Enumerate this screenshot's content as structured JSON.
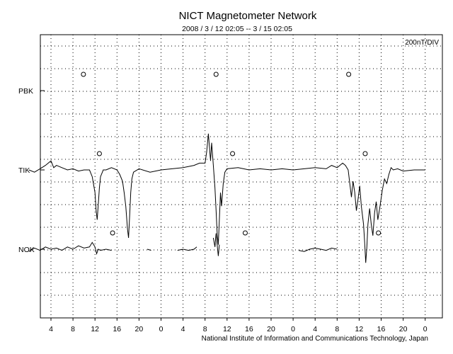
{
  "chart_data": {
    "type": "line",
    "title": "NICT Magnetometer Network",
    "subtitle": "2008 / 3 / 12  02:05 --  3 / 15  02:05",
    "scale_label": "200nT/DIV",
    "footer": "National Institute of Information and Communications Technology, Japan",
    "x_ticks": [
      "4",
      "8",
      "12",
      "16",
      "20",
      "0",
      "4",
      "8",
      "12",
      "16",
      "20",
      "0",
      "4",
      "8",
      "12",
      "16",
      "20",
      "0"
    ],
    "xlim_hours": [
      0,
      72
    ],
    "grid": true,
    "stations": [
      {
        "name": "PBK",
        "midnight_markers_hours": [
          9.9,
          34.0,
          58.1
        ],
        "values": []
      },
      {
        "name": "TIK",
        "midnight_markers_hours": [
          12.8,
          37.0,
          61.1
        ],
        "values": [
          [
            0,
            0
          ],
          [
            1,
            -0.1
          ],
          [
            2,
            0.05
          ],
          [
            3,
            0.2
          ],
          [
            4,
            0.4
          ],
          [
            4.5,
            0.1
          ],
          [
            5,
            0.2
          ],
          [
            6,
            0.1
          ],
          [
            7,
            0
          ],
          [
            8,
            0.05
          ],
          [
            9,
            -0.05
          ],
          [
            10,
            0
          ],
          [
            11,
            0
          ],
          [
            11.5,
            -0.3
          ],
          [
            12,
            -1.0
          ],
          [
            12.2,
            -1.8
          ],
          [
            12.4,
            -2.2
          ],
          [
            12.6,
            -1.5
          ],
          [
            12.8,
            -0.8
          ],
          [
            13,
            -0.3
          ],
          [
            13.5,
            0
          ],
          [
            14,
            0
          ],
          [
            15,
            0.1
          ],
          [
            16,
            0
          ],
          [
            16.5,
            -0.2
          ],
          [
            17,
            -0.5
          ],
          [
            17.3,
            -1.0
          ],
          [
            17.6,
            -1.6
          ],
          [
            17.9,
            -2.6
          ],
          [
            18.1,
            -3.0
          ],
          [
            18.3,
            -2.0
          ],
          [
            18.5,
            -1.0
          ],
          [
            18.7,
            -0.4
          ],
          [
            19,
            -0.1
          ],
          [
            20,
            0.05
          ],
          [
            22,
            -0.1
          ],
          [
            24,
            0
          ],
          [
            26,
            0.05
          ],
          [
            28,
            0.1
          ],
          [
            30,
            0.2
          ],
          [
            31,
            0.3
          ],
          [
            32,
            0.3
          ],
          [
            32.3,
            0.8
          ],
          [
            32.6,
            1.6
          ],
          [
            32.8,
            1.0
          ],
          [
            33,
            0.4
          ],
          [
            33.2,
            1.2
          ],
          [
            33.5,
            0.2
          ],
          [
            33.8,
            -0.8
          ],
          [
            34.0,
            -1.8
          ],
          [
            34.2,
            -2.8
          ],
          [
            34.4,
            -3.3
          ],
          [
            34.6,
            -2.2
          ],
          [
            34.8,
            -1.0
          ],
          [
            35,
            -1.6
          ],
          [
            35.3,
            -0.6
          ],
          [
            35.6,
            -0.1
          ],
          [
            36,
            0.05
          ],
          [
            38,
            0.1
          ],
          [
            40,
            0
          ],
          [
            42,
            0.05
          ],
          [
            44,
            0
          ],
          [
            46,
            0.05
          ],
          [
            48,
            0
          ],
          [
            50,
            0.05
          ],
          [
            52,
            0.1
          ],
          [
            54,
            0.05
          ],
          [
            55,
            0.2
          ],
          [
            56,
            0.1
          ],
          [
            57,
            0.3
          ],
          [
            57.5,
            0.2
          ],
          [
            58,
            0
          ],
          [
            58.3,
            -0.6
          ],
          [
            58.6,
            -1.2
          ],
          [
            58.9,
            -0.5
          ],
          [
            59.2,
            -1.0
          ],
          [
            59.5,
            -1.8
          ],
          [
            59.8,
            -1.3
          ],
          [
            60.1,
            -0.7
          ],
          [
            60.4,
            -1.6
          ],
          [
            60.8,
            -2.4
          ],
          [
            61.0,
            -3.2
          ],
          [
            61.2,
            -4.1
          ],
          [
            61.4,
            -3.4
          ],
          [
            61.6,
            -2.4
          ],
          [
            61.9,
            -1.7
          ],
          [
            62.2,
            -2.4
          ],
          [
            62.5,
            -2.9
          ],
          [
            62.8,
            -1.9
          ],
          [
            63.1,
            -1.4
          ],
          [
            63.4,
            -2.2
          ],
          [
            63.8,
            -1.6
          ],
          [
            64.2,
            -0.9
          ],
          [
            64.6,
            -0.4
          ],
          [
            65.0,
            -0.6
          ],
          [
            65.4,
            -0.2
          ],
          [
            65.8,
            0.1
          ],
          [
            66.2,
            0
          ],
          [
            67,
            0.05
          ],
          [
            68,
            -0.05
          ],
          [
            70,
            0
          ],
          [
            72,
            0
          ]
        ]
      },
      {
        "name": "NOK",
        "midnight_markers_hours": [
          15.2,
          39.3,
          63.5
        ],
        "values": [
          [
            0,
            -0.1
          ],
          [
            1,
            0.05
          ],
          [
            2,
            -0.05
          ],
          [
            3,
            0.1
          ],
          [
            4,
            0
          ],
          [
            5,
            0.05
          ],
          [
            6,
            -0.05
          ],
          [
            7,
            0.1
          ],
          [
            8,
            0
          ],
          [
            9,
            0.15
          ],
          [
            10,
            0.05
          ],
          [
            11,
            0.1
          ],
          [
            11.5,
            0.3
          ],
          [
            12,
            0.1
          ],
          [
            12.3,
            -0.2
          ],
          [
            12.6,
            0
          ],
          [
            13,
            -0.05
          ],
          [
            14,
            0
          ],
          [
            15,
            -0.05
          ],
          null,
          [
            21.5,
            0
          ],
          [
            22.2,
            -0.05
          ],
          null,
          [
            27,
            -0.05
          ],
          [
            28,
            0
          ],
          [
            29,
            -0.05
          ],
          [
            30,
            0
          ],
          [
            30.5,
            0.1
          ],
          null,
          [
            33.5,
            0.5
          ],
          [
            33.8,
            0.1
          ],
          [
            34.0,
            0.7
          ],
          [
            34.2,
            0.2
          ],
          [
            34.4,
            -0.3
          ],
          [
            34.6,
            0.2
          ],
          null,
          [
            49,
            -0.05
          ],
          [
            50,
            -0.1
          ],
          [
            51,
            0
          ],
          [
            52,
            0.05
          ],
          [
            53,
            0
          ],
          [
            54,
            -0.05
          ],
          [
            55,
            0.05
          ],
          [
            56,
            0
          ]
        ]
      }
    ]
  }
}
